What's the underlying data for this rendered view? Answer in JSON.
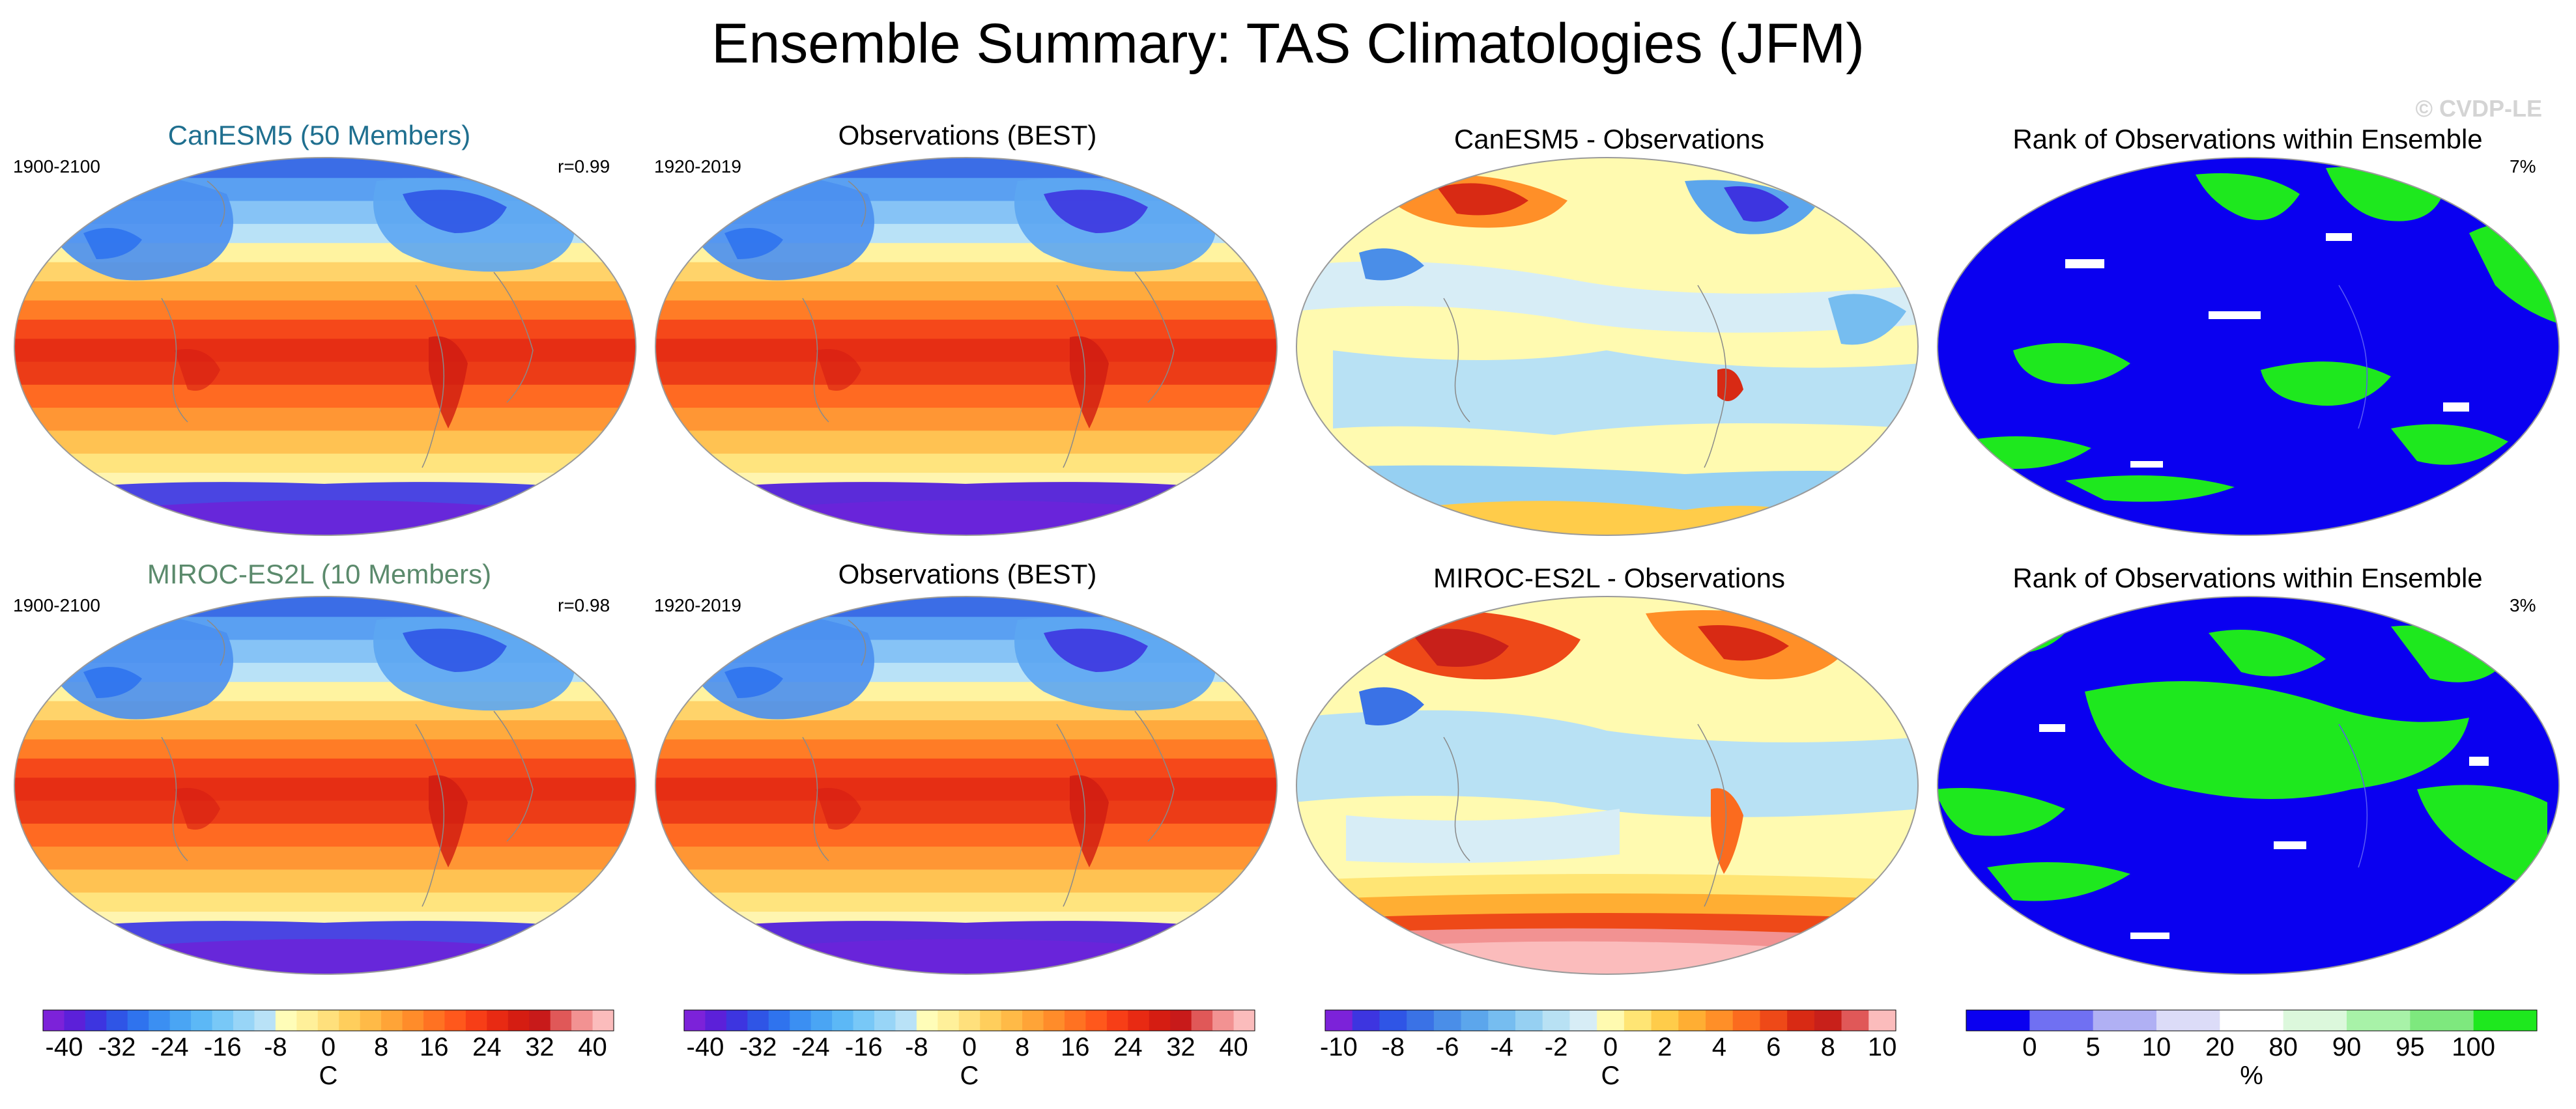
{
  "title": "Ensemble Summary: TAS Climatologies (JFM)",
  "watermark": "© CVDP-LE",
  "rows": [
    {
      "panels": [
        {
          "title": "CanESM5 (50 Members)",
          "left_label": "1900-2100",
          "right_label": "r=0.99",
          "kind": "clim"
        },
        {
          "title": "Observations (BEST)",
          "left_label": "1920-2019",
          "right_label": "",
          "kind": "clim_obs"
        },
        {
          "title": "CanESM5 - Observations",
          "left_label": "",
          "right_label": "",
          "kind": "diff1"
        },
        {
          "title": "Rank of Observations within Ensemble",
          "left_label": "",
          "right_label": "7%",
          "kind": "rank1"
        }
      ]
    },
    {
      "panels": [
        {
          "title": "MIROC-ES2L (10 Members)",
          "left_label": "1900-2100",
          "right_label": "r=0.98",
          "kind": "clim"
        },
        {
          "title": "Observations (BEST)",
          "left_label": "1920-2019",
          "right_label": "",
          "kind": "clim_obs"
        },
        {
          "title": "MIROC-ES2L - Observations",
          "left_label": "",
          "right_label": "",
          "kind": "diff2"
        },
        {
          "title": "Rank of Observations within Ensemble",
          "left_label": "",
          "right_label": "3%",
          "kind": "rank2"
        }
      ]
    }
  ],
  "colorbars": [
    {
      "ticks": [
        "-40",
        "-32",
        "-24",
        "-16",
        "-8",
        "0",
        "8",
        "16",
        "24",
        "32",
        "40"
      ],
      "unit": "C",
      "colors": [
        "#7c22d9",
        "#5c20d9",
        "#3d35e0",
        "#2f55e6",
        "#2f73ee",
        "#3b8ff2",
        "#4aa5f4",
        "#5cb8f6",
        "#78c8f7",
        "#98d5f7",
        "#b9e2f7",
        "#fffdb8",
        "#fff09a",
        "#ffe07c",
        "#ffce5c",
        "#ffba47",
        "#ffa437",
        "#ff8c2a",
        "#ff7222",
        "#ff581c",
        "#f73e17",
        "#e82a13",
        "#d51d12",
        "#c81a1a",
        "#e05858",
        "#f29292",
        "#fbbcbc"
      ]
    },
    {
      "ticks": [
        "-40",
        "-32",
        "-24",
        "-16",
        "-8",
        "0",
        "8",
        "16",
        "24",
        "32",
        "40"
      ],
      "unit": "C",
      "colors": [
        "#7c22d9",
        "#5c20d9",
        "#3d35e0",
        "#2f55e6",
        "#2f73ee",
        "#3b8ff2",
        "#4aa5f4",
        "#5cb8f6",
        "#78c8f7",
        "#98d5f7",
        "#b9e2f7",
        "#fffdb8",
        "#fff09a",
        "#ffe07c",
        "#ffce5c",
        "#ffba47",
        "#ffa437",
        "#ff8c2a",
        "#ff7222",
        "#ff581c",
        "#f73e17",
        "#e82a13",
        "#d51d12",
        "#c81a1a",
        "#e05858",
        "#f29292",
        "#fbbcbc"
      ]
    },
    {
      "ticks": [
        "-10",
        "-8",
        "-6",
        "-4",
        "-2",
        "0",
        "2",
        "4",
        "6",
        "8",
        "10"
      ],
      "unit": "C",
      "colors": [
        "#7c22d9",
        "#3d35e0",
        "#2f55e6",
        "#3a72e6",
        "#4a8ee8",
        "#5ca6ec",
        "#76bdf0",
        "#96d0f2",
        "#b8e1f4",
        "#d7edf6",
        "#fffab0",
        "#ffe574",
        "#ffcc4a",
        "#ffae33",
        "#ff8f28",
        "#fb6b1e",
        "#ee4918",
        "#d82a14",
        "#c8201a",
        "#e05858",
        "#fbbcbc"
      ]
    },
    {
      "ticks": [
        "0",
        "5",
        "10",
        "20",
        "80",
        "90",
        "95",
        "100"
      ],
      "unit": "%",
      "colors": [
        "#0a00f0",
        "#7070f2",
        "#b0b0f4",
        "#dcdcf8",
        "#ffffff",
        "#dcf8dc",
        "#a8f2a8",
        "#7ee87e",
        "#1ee81e"
      ]
    }
  ]
}
